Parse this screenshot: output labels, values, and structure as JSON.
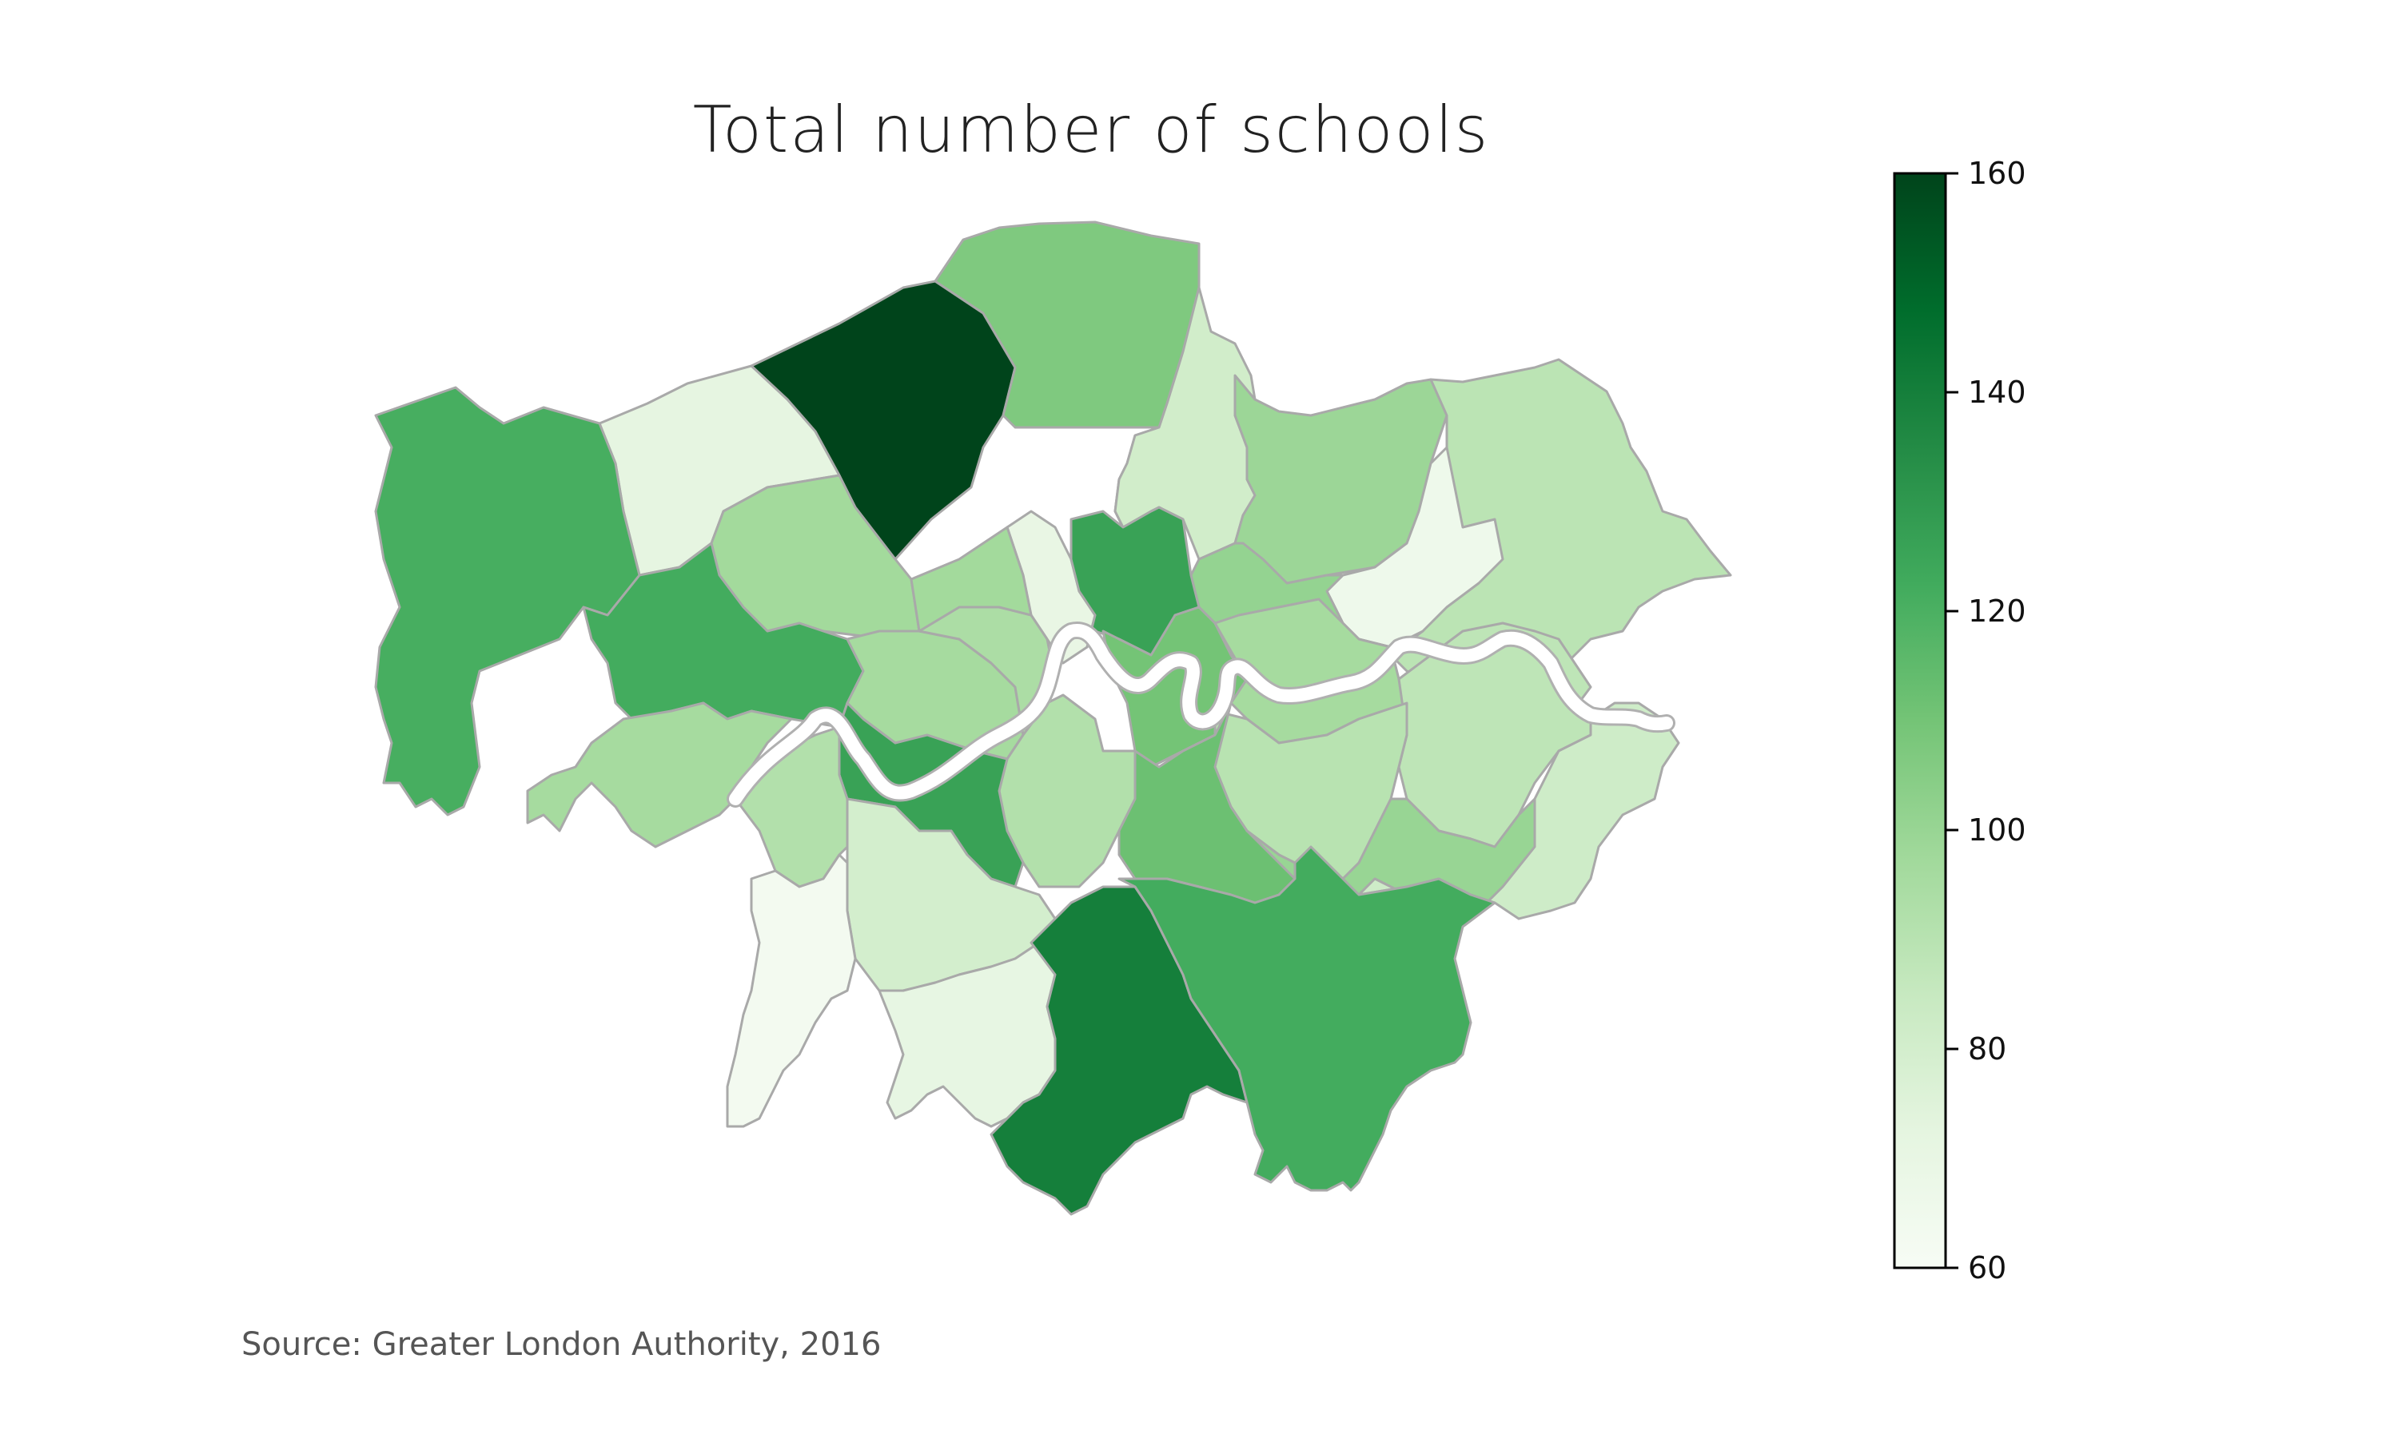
{
  "title": "Total number of schools",
  "source": "Source: Greater London Authority, 2016",
  "colorbar": {
    "min": 60,
    "max": 160,
    "ticks": [
      "60",
      "80",
      "100",
      "120",
      "140",
      "160"
    ],
    "stops": [
      "#f7fcf5",
      "#e5f5e0",
      "#c7e9c0",
      "#a1d99b",
      "#74c476",
      "#41ab5d",
      "#238b45",
      "#006d2c",
      "#00441b"
    ]
  },
  "chart_data": {
    "type": "choropleth",
    "title": "Total number of schools",
    "colormap": "Greens",
    "value_range": [
      60,
      160
    ],
    "regions": [
      {
        "id": "r01",
        "value": 160
      },
      {
        "id": "r02",
        "value": 107
      },
      {
        "id": "r03",
        "value": 72
      },
      {
        "id": "r04",
        "value": 121
      },
      {
        "id": "r05",
        "value": 97
      },
      {
        "id": "r06",
        "value": 98
      },
      {
        "id": "r07",
        "value": 81
      },
      {
        "id": "r08",
        "value": 99
      },
      {
        "id": "r09",
        "value": 89
      },
      {
        "id": "r10",
        "value": 66
      },
      {
        "id": "r11",
        "value": 101
      },
      {
        "id": "r12",
        "value": 70
      },
      {
        "id": "r13",
        "value": 126
      },
      {
        "id": "r14",
        "value": 122
      },
      {
        "id": "r15",
        "value": 96
      },
      {
        "id": "r16",
        "value": 94
      },
      {
        "id": "r17",
        "value": 97
      },
      {
        "id": "r18",
        "value": 110
      },
      {
        "id": "r19",
        "value": 96
      },
      {
        "id": "r20",
        "value": 88
      },
      {
        "id": "r21",
        "value": 90
      },
      {
        "id": "r22",
        "value": 92
      },
      {
        "id": "r23",
        "value": 126
      },
      {
        "id": "r24",
        "value": 92
      },
      {
        "id": "r25",
        "value": 112
      },
      {
        "id": "r26",
        "value": 100
      },
      {
        "id": "r27",
        "value": 96
      },
      {
        "id": "r28",
        "value": 82
      },
      {
        "id": "r29",
        "value": 80
      },
      {
        "id": "r30",
        "value": 63
      },
      {
        "id": "r31",
        "value": 71
      },
      {
        "id": "r32",
        "value": 140
      },
      {
        "id": "r33",
        "value": 122
      }
    ]
  }
}
